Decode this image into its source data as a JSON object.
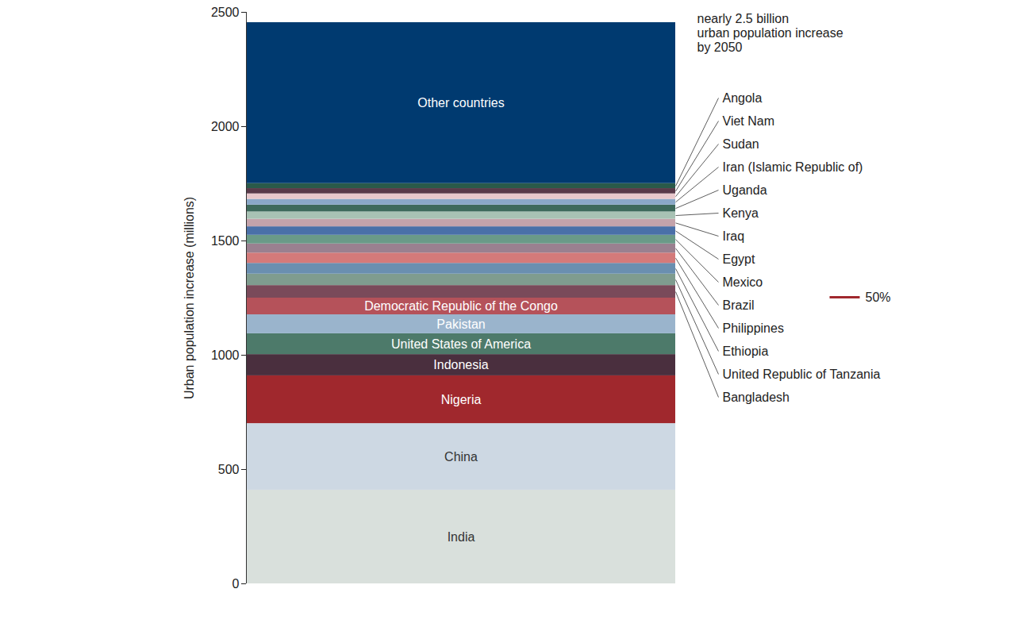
{
  "chart_data": {
    "type": "bar",
    "stacked": true,
    "ylabel": "Urban population increase (millions)",
    "ylim": [
      0,
      2500
    ],
    "yticks": [
      0,
      500,
      1000,
      1500,
      2000,
      2500
    ],
    "categories": [
      "India",
      "China",
      "Nigeria",
      "Indonesia",
      "United States of America",
      "Pakistan",
      "Democratic Republic of the Congo",
      "Bangladesh",
      "United Republic of Tanzania",
      "Ethiopia",
      "Philippines",
      "Brazil",
      "Mexico",
      "Egypt",
      "Iraq",
      "Kenya",
      "Uganda",
      "Iran (Islamic Republic of)",
      "Sudan",
      "Viet Nam",
      "Angola",
      "Other countries"
    ],
    "values": [
      410,
      291,
      209,
      93,
      91,
      83,
      73,
      55,
      50,
      47,
      45,
      40,
      38,
      37,
      33,
      32,
      30,
      25,
      24,
      23,
      22,
      704
    ],
    "colors": [
      "#d9e0dc",
      "#cdd8e3",
      "#a0282d",
      "#4a2f3e",
      "#4d7a6a",
      "#9ab4cc",
      "#b5525a",
      "#7a4a5a",
      "#7f9c8f",
      "#6a8fb0",
      "#d47a7a",
      "#9a8090",
      "#6a9a88",
      "#4a70a8",
      "#c4a3ab",
      "#a8c2b4",
      "#3e6a5c",
      "#8aa8c8",
      "#e8c8cc",
      "#5a3a4a",
      "#2a5a4a",
      "#003a70"
    ],
    "annotations": [
      {
        "lines": [
          "nearly 2.5 billion",
          "urban population increase",
          "by 2050"
        ]
      },
      {
        "lines": [
          "50%"
        ],
        "color": "#a0282d"
      }
    ]
  }
}
